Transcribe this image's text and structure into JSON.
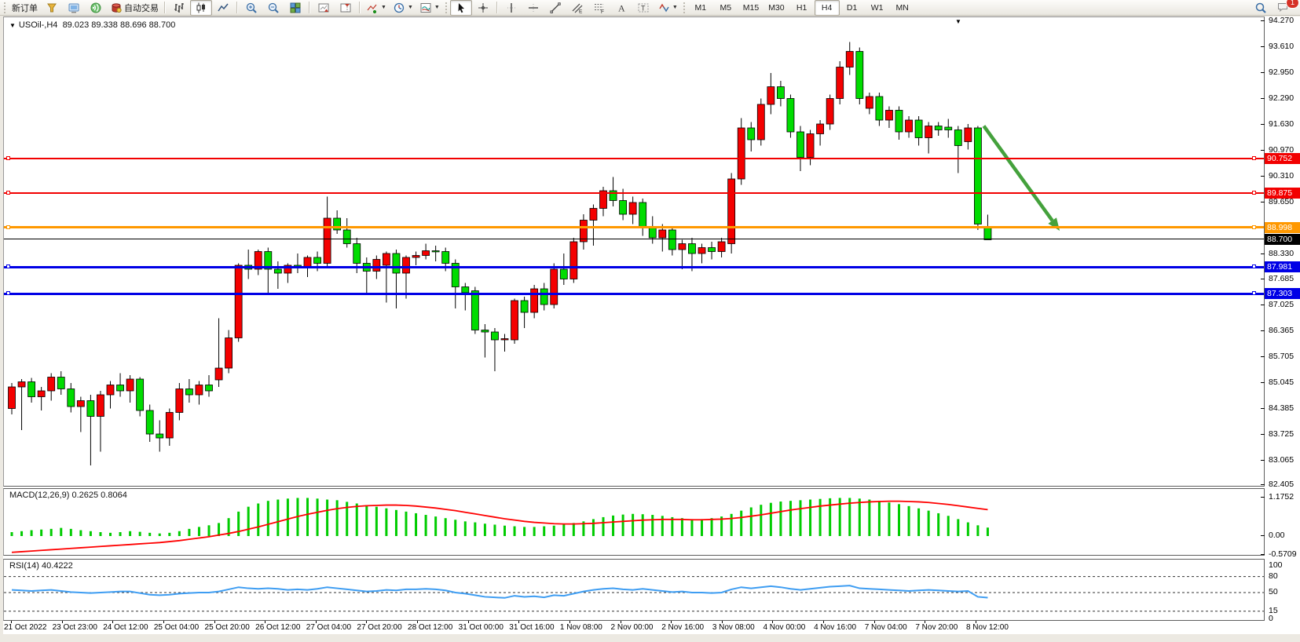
{
  "toolbar": {
    "new_order_label": "新订单",
    "autotrading_label": "自动交易",
    "chat_badge": "1",
    "timeframes": [
      "M1",
      "M5",
      "M15",
      "M30",
      "H1",
      "H4",
      "D1",
      "W1",
      "MN"
    ],
    "active_timeframe": "H4",
    "items": [
      {
        "type": "grip"
      },
      {
        "type": "text",
        "name": "new-order-button",
        "labelKey": "new_order_label"
      },
      {
        "type": "icon",
        "name": "metaeditor-button",
        "icon": "metaeditor-icon"
      },
      {
        "type": "icon",
        "name": "market-watch-button",
        "icon": "market-watch-icon"
      },
      {
        "type": "icon",
        "name": "news-button",
        "icon": "news-icon"
      },
      {
        "type": "icon-label",
        "name": "autotrading-button",
        "icon": "autotrading-icon",
        "labelKey": "autotrading_label"
      },
      {
        "type": "sep"
      },
      {
        "type": "icon",
        "name": "bar-chart-button",
        "icon": "bar-chart-icon"
      },
      {
        "type": "icon",
        "name": "candlestick-button",
        "icon": "candles-icon",
        "pressed": true
      },
      {
        "type": "icon",
        "name": "line-chart-button",
        "icon": "line-chart-icon"
      },
      {
        "type": "sep"
      },
      {
        "type": "icon",
        "name": "zoom-in-button",
        "icon": "zoom-in-icon"
      },
      {
        "type": "icon",
        "name": "zoom-out-button",
        "icon": "zoom-out-icon"
      },
      {
        "type": "icon",
        "name": "tile-windows-button",
        "icon": "tile-windows-icon"
      },
      {
        "type": "sep"
      },
      {
        "type": "icon",
        "name": "auto-scroll-button",
        "icon": "auto-scroll-icon"
      },
      {
        "type": "icon",
        "name": "chart-shift-button",
        "icon": "chart-shift-icon"
      },
      {
        "type": "sep"
      },
      {
        "type": "icon",
        "name": "add-indicator-button",
        "icon": "add-indicator-icon",
        "caret": true
      },
      {
        "type": "icon",
        "name": "periods-button",
        "icon": "periods-icon",
        "caret": true
      },
      {
        "type": "icon",
        "name": "templates-button",
        "icon": "templates-icon",
        "caret": true
      },
      {
        "type": "grip"
      },
      {
        "type": "icon",
        "name": "cursor-button",
        "icon": "cursor-icon",
        "pressed": true
      },
      {
        "type": "icon",
        "name": "crosshair-button",
        "icon": "crosshair-icon"
      },
      {
        "type": "sep"
      },
      {
        "type": "icon",
        "name": "vertical-line-button",
        "icon": "vline-icon"
      },
      {
        "type": "icon",
        "name": "horizontal-line-button",
        "icon": "hline-icon"
      },
      {
        "type": "icon",
        "name": "trendline-button",
        "icon": "trendline-icon"
      },
      {
        "type": "icon",
        "name": "channel-button",
        "icon": "channel-icon"
      },
      {
        "type": "icon",
        "name": "fibonacci-button",
        "icon": "fibo-icon"
      },
      {
        "type": "icon",
        "name": "text-button",
        "icon": "text-icon"
      },
      {
        "type": "icon",
        "name": "text-label-button",
        "icon": "label-icon"
      },
      {
        "type": "icon",
        "name": "arrows-button",
        "icon": "shapes-icon",
        "caret": true
      },
      {
        "type": "grip"
      },
      {
        "type": "timeframes"
      },
      {
        "type": "spacer"
      },
      {
        "type": "icon",
        "name": "search-button",
        "icon": "search-icon"
      },
      {
        "type": "chat"
      }
    ]
  },
  "chart": {
    "title_symbol": "USOil-,H4",
    "title_ohlc": "89.023 89.338 88.696 88.700",
    "price_ticks": [
      "94.270",
      "93.610",
      "92.950",
      "92.290",
      "91.630",
      "90.970",
      "90.310",
      "89.650",
      "88.330",
      "87.685",
      "87.025",
      "86.365",
      "85.705",
      "85.045",
      "84.385",
      "83.725",
      "83.065",
      "82.405"
    ],
    "current_price": {
      "label": "88.700",
      "value": 88.7,
      "color": "#000000"
    },
    "levels": [
      {
        "label": "90.752",
        "value": 90.752,
        "color": "#F20000",
        "width": 2
      },
      {
        "label": "89.875",
        "value": 89.875,
        "color": "#F20000",
        "width": 2
      },
      {
        "label": "88.998",
        "value": 88.998,
        "color": "#FF9800",
        "width": 3
      },
      {
        "label": "87.981",
        "value": 87.981,
        "color": "#0000E6",
        "width": 3
      },
      {
        "label": "87.303",
        "value": 87.303,
        "color": "#0000E6",
        "width": 3
      }
    ]
  },
  "indicators": {
    "macd": {
      "label": "MACD(12,26,9) 0.2625 0.8064",
      "ticks": [
        {
          "label": "1.1752",
          "value": 1.1752
        },
        {
          "label": "0.00",
          "value": 0.0
        },
        {
          "label": "-0.5709",
          "value": -0.5709
        }
      ]
    },
    "rsi": {
      "label": "RSI(14) 40.4222",
      "ticks": [
        {
          "label": "100",
          "value": 100
        },
        {
          "label": "80",
          "value": 80
        },
        {
          "label": "50",
          "value": 50
        },
        {
          "label": "15",
          "value": 15
        },
        {
          "label": "0",
          "value": 0
        }
      ]
    }
  },
  "time_axis": [
    "21 Oct 2022",
    "23 Oct 23:00",
    "24 Oct 12:00",
    "25 Oct 04:00",
    "25 Oct 20:00",
    "26 Oct 12:00",
    "27 Oct 04:00",
    "27 Oct 20:00",
    "28 Oct 12:00",
    "31 Oct 00:00",
    "31 Oct 16:00",
    "1 Nov 08:00",
    "2 Nov 00:00",
    "2 Nov 16:00",
    "3 Nov 08:00",
    "4 Nov 00:00",
    "4 Nov 16:00",
    "7 Nov 04:00",
    "7 Nov 20:00",
    "8 Nov 12:00"
  ],
  "chart_data": {
    "type": "candlestick",
    "symbol": "USOil",
    "period": "H4",
    "price_range": [
      82.405,
      94.27
    ],
    "colors": {
      "up": "#F40000",
      "down": "#00DC00",
      "wick": "#000000",
      "macd_hist": "#00CC00",
      "macd_signal": "#FF0000",
      "rsi_line": "#3E9DF2",
      "arrow": "#44A13C"
    },
    "hlines": [
      90.752,
      89.875,
      88.998,
      87.981,
      87.303
    ],
    "arrow": {
      "from": {
        "bar": 98.6,
        "price": 91.6
      },
      "to": {
        "bar": 106.3,
        "price": 88.93
      }
    },
    "candles": [
      [
        84.4,
        85.05,
        84.25,
        84.95
      ],
      [
        84.95,
        85.15,
        83.85,
        85.08
      ],
      [
        85.08,
        85.18,
        84.55,
        84.7
      ],
      [
        84.7,
        84.95,
        84.35,
        84.85
      ],
      [
        84.85,
        85.3,
        84.6,
        85.2
      ],
      [
        85.2,
        85.35,
        84.75,
        84.9
      ],
      [
        84.9,
        85.05,
        84.3,
        84.45
      ],
      [
        84.45,
        84.7,
        83.8,
        84.6
      ],
      [
        84.6,
        84.75,
        82.95,
        84.2
      ],
      [
        84.2,
        84.85,
        83.3,
        84.75
      ],
      [
        84.75,
        85.1,
        84.4,
        85.0
      ],
      [
        85.0,
        85.3,
        84.7,
        84.85
      ],
      [
        84.85,
        85.25,
        84.55,
        85.15
      ],
      [
        85.15,
        85.2,
        84.2,
        84.35
      ],
      [
        84.35,
        84.5,
        83.55,
        83.75
      ],
      [
        83.75,
        84.1,
        83.3,
        83.65
      ],
      [
        83.65,
        84.4,
        83.45,
        84.3
      ],
      [
        84.3,
        85.05,
        84.1,
        84.9
      ],
      [
        84.9,
        85.15,
        84.55,
        84.75
      ],
      [
        84.75,
        85.1,
        84.5,
        85.0
      ],
      [
        85.0,
        85.25,
        84.7,
        84.85
      ],
      [
        85.13,
        86.7,
        84.95,
        85.43
      ],
      [
        85.43,
        86.4,
        85.3,
        86.2
      ],
      [
        86.2,
        88.1,
        86.1,
        88.05
      ],
      [
        88.05,
        88.45,
        87.7,
        87.95
      ],
      [
        87.95,
        88.45,
        87.8,
        88.4
      ],
      [
        88.4,
        88.5,
        87.3,
        87.95
      ],
      [
        87.95,
        88.15,
        87.45,
        87.85
      ],
      [
        87.85,
        88.1,
        87.6,
        88.05
      ],
      [
        88.05,
        88.35,
        87.85,
        88.0
      ],
      [
        88.0,
        88.3,
        87.75,
        88.25
      ],
      [
        88.25,
        88.4,
        87.9,
        88.1
      ],
      [
        88.1,
        89.8,
        88.0,
        89.25
      ],
      [
        89.25,
        89.45,
        88.85,
        88.95
      ],
      [
        88.95,
        89.25,
        88.5,
        88.6
      ],
      [
        88.6,
        88.75,
        87.85,
        88.1
      ],
      [
        88.1,
        88.25,
        87.3,
        87.9
      ],
      [
        87.9,
        88.3,
        87.7,
        88.2
      ],
      [
        88.05,
        88.4,
        87.1,
        88.35
      ],
      [
        88.35,
        88.45,
        86.95,
        87.85
      ],
      [
        87.85,
        88.3,
        87.2,
        88.25
      ],
      [
        88.25,
        88.4,
        88.05,
        88.3
      ],
      [
        88.3,
        88.6,
        88.2,
        88.42
      ],
      [
        88.42,
        88.55,
        88.15,
        88.4
      ],
      [
        88.4,
        88.5,
        87.9,
        88.1
      ],
      [
        88.1,
        88.2,
        86.95,
        87.5
      ],
      [
        87.5,
        87.6,
        86.9,
        87.35
      ],
      [
        87.4,
        87.5,
        86.3,
        86.4
      ],
      [
        86.4,
        86.55,
        85.7,
        86.35
      ],
      [
        86.35,
        86.45,
        85.35,
        86.15
      ],
      [
        86.15,
        86.3,
        85.85,
        86.18
      ],
      [
        86.15,
        87.2,
        86.05,
        87.15
      ],
      [
        87.15,
        87.25,
        86.45,
        86.85
      ],
      [
        86.85,
        87.55,
        86.7,
        87.45
      ],
      [
        87.45,
        87.6,
        86.9,
        87.05
      ],
      [
        87.05,
        88.1,
        86.95,
        87.95
      ],
      [
        87.95,
        88.35,
        87.55,
        87.7
      ],
      [
        87.7,
        88.75,
        87.6,
        88.65
      ],
      [
        88.65,
        89.35,
        88.45,
        89.2
      ],
      [
        89.2,
        89.6,
        88.55,
        89.5
      ],
      [
        89.5,
        90.05,
        89.3,
        89.95
      ],
      [
        89.95,
        90.3,
        89.55,
        89.7
      ],
      [
        89.7,
        90.0,
        89.2,
        89.35
      ],
      [
        89.35,
        89.8,
        89.1,
        89.65
      ],
      [
        89.65,
        89.75,
        88.8,
        89.0
      ],
      [
        89.0,
        89.3,
        88.6,
        88.75
      ],
      [
        88.75,
        89.1,
        88.4,
        88.95
      ],
      [
        88.95,
        89.05,
        88.3,
        88.45
      ],
      [
        88.45,
        88.7,
        87.95,
        88.6
      ],
      [
        88.6,
        88.75,
        87.9,
        88.35
      ],
      [
        88.35,
        88.6,
        88.1,
        88.5
      ],
      [
        88.5,
        88.65,
        88.2,
        88.4
      ],
      [
        88.4,
        88.75,
        88.25,
        88.65
      ],
      [
        88.6,
        90.4,
        88.35,
        90.25
      ],
      [
        90.25,
        91.8,
        90.1,
        91.55
      ],
      [
        91.55,
        91.7,
        90.95,
        91.25
      ],
      [
        91.25,
        92.3,
        91.1,
        92.15
      ],
      [
        92.15,
        92.95,
        91.9,
        92.6
      ],
      [
        92.6,
        92.75,
        92.1,
        92.3
      ],
      [
        92.3,
        92.4,
        91.3,
        91.45
      ],
      [
        91.45,
        91.6,
        90.45,
        90.8
      ],
      [
        90.8,
        91.5,
        90.6,
        91.4
      ],
      [
        91.4,
        91.75,
        91.1,
        91.65
      ],
      [
        91.65,
        92.4,
        91.5,
        92.3
      ],
      [
        92.3,
        93.25,
        92.15,
        93.1
      ],
      [
        93.1,
        93.74,
        92.9,
        93.5
      ],
      [
        93.5,
        93.6,
        92.15,
        92.3
      ],
      [
        92.05,
        92.45,
        91.9,
        92.35
      ],
      [
        92.35,
        92.45,
        91.6,
        91.75
      ],
      [
        91.75,
        92.1,
        91.55,
        92.0
      ],
      [
        92.0,
        92.1,
        91.25,
        91.45
      ],
      [
        91.45,
        91.85,
        91.3,
        91.75
      ],
      [
        91.75,
        91.85,
        91.1,
        91.3
      ],
      [
        91.3,
        91.7,
        90.9,
        91.6
      ],
      [
        91.6,
        91.7,
        91.35,
        91.5
      ],
      [
        91.57,
        91.78,
        91.3,
        91.5
      ],
      [
        91.5,
        91.6,
        90.4,
        91.1
      ],
      [
        91.2,
        91.65,
        91.0,
        91.55
      ],
      [
        91.55,
        91.6,
        88.95,
        89.1
      ],
      [
        89.02,
        89.34,
        88.7,
        88.7
      ]
    ],
    "macd": {
      "values_label": "0.2625 0.8064",
      "range": [
        -0.5709,
        1.1752
      ],
      "hist": [
        0.12,
        0.15,
        0.18,
        0.2,
        0.22,
        0.25,
        0.22,
        0.18,
        0.15,
        0.12,
        0.1,
        0.12,
        0.15,
        0.13,
        0.1,
        0.08,
        0.1,
        0.15,
        0.22,
        0.28,
        0.33,
        0.4,
        0.55,
        0.75,
        0.9,
        1.0,
        1.08,
        1.12,
        1.15,
        1.17,
        1.17,
        1.15,
        1.12,
        1.1,
        1.05,
        1.0,
        0.95,
        0.9,
        0.85,
        0.8,
        0.75,
        0.7,
        0.65,
        0.6,
        0.55,
        0.5,
        0.45,
        0.42,
        0.38,
        0.35,
        0.32,
        0.3,
        0.28,
        0.28,
        0.3,
        0.32,
        0.35,
        0.4,
        0.45,
        0.52,
        0.58,
        0.63,
        0.66,
        0.68,
        0.67,
        0.65,
        0.62,
        0.58,
        0.55,
        0.52,
        0.52,
        0.55,
        0.6,
        0.68,
        0.78,
        0.88,
        0.96,
        1.02,
        1.06,
        1.08,
        1.1,
        1.12,
        1.14,
        1.16,
        1.17,
        1.17,
        1.15,
        1.12,
        1.08,
        1.03,
        0.98,
        0.92,
        0.85,
        0.78,
        0.7,
        0.62,
        0.52,
        0.42,
        0.33,
        0.26
      ],
      "signal": [
        -0.5,
        -0.48,
        -0.46,
        -0.44,
        -0.42,
        -0.4,
        -0.38,
        -0.36,
        -0.34,
        -0.32,
        -0.3,
        -0.28,
        -0.26,
        -0.24,
        -0.22,
        -0.2,
        -0.17,
        -0.14,
        -0.1,
        -0.06,
        -0.02,
        0.03,
        0.08,
        0.14,
        0.21,
        0.28,
        0.36,
        0.44,
        0.52,
        0.6,
        0.67,
        0.73,
        0.79,
        0.84,
        0.88,
        0.91,
        0.93,
        0.94,
        0.95,
        0.95,
        0.94,
        0.92,
        0.89,
        0.86,
        0.82,
        0.78,
        0.73,
        0.68,
        0.63,
        0.58,
        0.53,
        0.49,
        0.45,
        0.42,
        0.4,
        0.38,
        0.37,
        0.37,
        0.38,
        0.39,
        0.41,
        0.43,
        0.45,
        0.47,
        0.49,
        0.5,
        0.51,
        0.51,
        0.51,
        0.5,
        0.5,
        0.51,
        0.52,
        0.54,
        0.57,
        0.61,
        0.65,
        0.7,
        0.75,
        0.8,
        0.84,
        0.88,
        0.92,
        0.95,
        0.98,
        1.01,
        1.03,
        1.05,
        1.06,
        1.07,
        1.07,
        1.06,
        1.05,
        1.03,
        1.0,
        0.97,
        0.93,
        0.89,
        0.85,
        0.81
      ]
    },
    "rsi": {
      "value_label": "40.4222",
      "levels": [
        80,
        50,
        15
      ],
      "values": [
        55,
        54,
        53,
        54,
        55,
        53,
        51,
        50,
        49,
        50,
        51,
        52,
        52,
        49,
        46,
        45,
        46,
        48,
        49,
        50,
        50,
        52,
        56,
        60,
        58,
        57,
        58,
        57,
        55,
        56,
        55,
        57,
        60,
        58,
        56,
        54,
        52,
        53,
        55,
        54,
        56,
        56,
        57,
        56,
        54,
        50,
        48,
        45,
        42,
        41,
        40,
        44,
        42,
        43,
        41,
        45,
        44,
        48,
        52,
        55,
        57,
        58,
        56,
        55,
        57,
        55,
        53,
        51,
        52,
        50,
        50,
        49,
        50,
        56,
        60,
        58,
        60,
        62,
        60,
        57,
        55,
        57,
        59,
        61,
        62,
        63,
        58,
        57,
        56,
        55,
        54,
        53,
        54,
        55,
        54,
        53,
        52,
        53,
        42,
        40.4
      ]
    }
  }
}
